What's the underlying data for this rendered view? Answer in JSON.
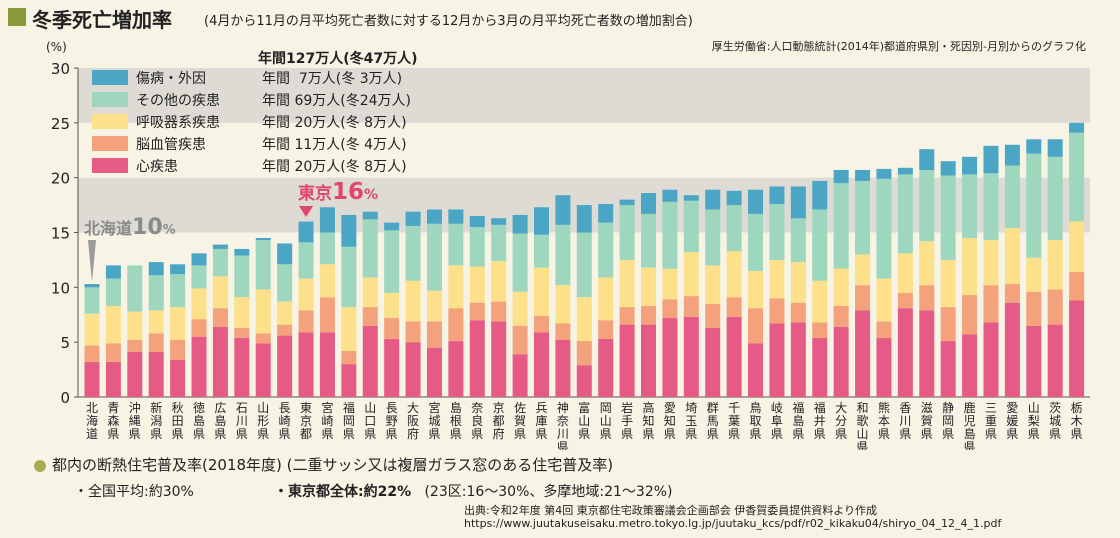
{
  "title": {
    "main": "冬季死亡増加率",
    "subtitle": "(4月から11月の月平均死亡者数に対する12月から3月の月平均死亡者数の増加割合)",
    "source_top": "厚生労働省:人口動態統計(2014年)都道府県別・死因別-月別からのグラフ化"
  },
  "colors": {
    "background": "#f7f3e5",
    "band": "#dddbd3",
    "injury": "#4aa6c4",
    "other": "#9ed6be",
    "respiratory": "#fde08a",
    "cerebro": "#f3a27b",
    "heart": "#e65b86",
    "accent_red": "#e0466f",
    "accent_gray": "#999999"
  },
  "legend": {
    "header": "年間127万人(冬47万人)",
    "items": [
      {
        "key": "injury",
        "label": "傷病・外因",
        "annual": "年間  7万人(冬 3万人)"
      },
      {
        "key": "other",
        "label": "その他の疾患",
        "annual": "年間 69万人(冬24万人)"
      },
      {
        "key": "respiratory",
        "label": "呼吸器系疾患",
        "annual": "年間 20万人(冬 8万人)"
      },
      {
        "key": "cerebro",
        "label": "脳血管疾患",
        "annual": "年間 11万人(冬 4万人)"
      },
      {
        "key": "heart",
        "label": "心疾患",
        "annual": "年間 20万人(冬 8万人)"
      }
    ]
  },
  "annotations": {
    "tokyo_name": "東京",
    "tokyo_value": "16",
    "tokyo_unit": "%",
    "hokkaido_name": "北海道",
    "hokkaido_value": "10",
    "hokkaido_unit": "%"
  },
  "chart_data": {
    "type": "bar",
    "stacked": true,
    "ylabel": "(%)",
    "ylim": [
      0,
      30
    ],
    "yticks": [
      0,
      5,
      10,
      15,
      20,
      25,
      30
    ],
    "categories": [
      "北海道",
      "青森県",
      "沖縄県",
      "新潟県",
      "秋田県",
      "徳島県",
      "広島県",
      "石川県",
      "山形県",
      "長崎県",
      "東京都",
      "宮崎県",
      "福岡県",
      "山口県",
      "長野県",
      "大阪府",
      "宮城県",
      "島根県",
      "奈良県",
      "京都府",
      "佐賀県",
      "兵庫県",
      "神奈川県",
      "富山県",
      "岡山県",
      "岩手県",
      "高知県",
      "愛知県",
      "埼玉県",
      "群馬県",
      "千葉県",
      "鳥取県",
      "岐阜県",
      "福島県",
      "福井県",
      "大分県",
      "和歌山県",
      "熊本県",
      "香川県",
      "滋賀県",
      "静岡県",
      "鹿児島県",
      "三重県",
      "愛媛県",
      "山梨県",
      "茨城県",
      "栃木県"
    ],
    "series": [
      {
        "name": "心疾患",
        "key": "heart",
        "values": [
          3.2,
          3.2,
          4.1,
          4.1,
          3.4,
          5.5,
          6.4,
          5.4,
          4.9,
          5.6,
          5.9,
          5.9,
          3.0,
          6.5,
          5.3,
          5.0,
          4.5,
          5.1,
          7.0,
          6.9,
          3.9,
          5.9,
          5.2,
          2.9,
          5.3,
          6.6,
          6.6,
          7.2,
          7.3,
          6.3,
          7.3,
          4.9,
          6.7,
          6.8,
          5.4,
          6.4,
          7.9,
          5.4,
          8.1,
          7.9,
          5.1,
          5.7,
          6.8,
          8.6,
          6.5,
          6.6,
          8.8
        ]
      },
      {
        "name": "脳血管疾患",
        "key": "cerebro",
        "values": [
          1.5,
          1.7,
          1.1,
          1.7,
          1.8,
          1.6,
          1.7,
          0.9,
          0.9,
          1.0,
          2.0,
          3.2,
          1.2,
          1.7,
          1.9,
          1.9,
          2.4,
          3.0,
          1.6,
          1.8,
          2.6,
          1.5,
          1.5,
          2.2,
          1.7,
          1.6,
          1.7,
          1.7,
          1.9,
          2.2,
          1.8,
          3.2,
          2.3,
          1.8,
          1.4,
          1.9,
          2.3,
          1.5,
          1.4,
          2.3,
          3.1,
          3.6,
          3.4,
          1.7,
          3.1,
          3.2,
          2.6
        ]
      },
      {
        "name": "呼吸器系疾患",
        "key": "respiratory",
        "values": [
          2.9,
          3.4,
          2.6,
          2.1,
          3.0,
          2.8,
          2.9,
          2.8,
          4.0,
          2.1,
          2.9,
          3.0,
          4.0,
          2.7,
          2.3,
          3.7,
          2.8,
          3.9,
          3.3,
          3.7,
          3.1,
          4.4,
          3.5,
          4.0,
          3.9,
          4.3,
          3.5,
          2.8,
          4.0,
          3.5,
          4.2,
          3.4,
          3.5,
          3.7,
          3.8,
          3.4,
          2.8,
          3.9,
          3.6,
          4.0,
          4.3,
          5.2,
          4.1,
          5.1,
          3.1,
          4.5,
          4.6
        ]
      },
      {
        "name": "その他の疾患",
        "key": "other",
        "values": [
          2.4,
          2.5,
          4.2,
          3.2,
          3.0,
          2.1,
          2.5,
          3.8,
          4.5,
          3.4,
          3.3,
          2.9,
          5.5,
          5.3,
          5.7,
          5.0,
          6.1,
          3.8,
          3.6,
          3.3,
          5.3,
          3.0,
          5.5,
          5.9,
          5.0,
          5.0,
          4.9,
          6.1,
          4.7,
          5.1,
          4.2,
          5.2,
          5.1,
          4.0,
          6.5,
          7.8,
          6.7,
          9.1,
          7.2,
          6.5,
          7.7,
          5.8,
          6.1,
          5.7,
          9.5,
          7.6,
          8.1
        ]
      },
      {
        "name": "傷病・外因",
        "key": "injury",
        "values": [
          0.3,
          1.2,
          0.0,
          1.2,
          0.9,
          1.1,
          0.4,
          0.6,
          0.2,
          1.9,
          1.9,
          2.3,
          2.9,
          0.7,
          0.7,
          1.3,
          1.3,
          1.3,
          1.0,
          0.6,
          1.7,
          2.5,
          2.7,
          2.5,
          1.7,
          0.5,
          1.9,
          1.1,
          0.5,
          1.8,
          1.3,
          2.2,
          1.6,
          2.9,
          2.6,
          1.2,
          1.0,
          0.9,
          0.6,
          1.9,
          1.3,
          1.6,
          2.5,
          1.9,
          1.3,
          1.6,
          0.9
        ]
      }
    ]
  },
  "survey": {
    "title": "都内の断熱住宅普及率(2018年度) (二重サッシ又は複層ガラス窓のある住宅普及率)",
    "national": "・全国平均:約30%",
    "tokyo_all": "・東京都全体:約22%",
    "tokyo_detail": "(23区:16〜30%、多摩地域:21〜32%)"
  },
  "source": {
    "line1": "出典:令和2年度 第4回 東京都住宅政策審議会企画部会  伊香賀委員提供資料より作成",
    "url": "https://www.juutakuseisaku.metro.tokyo.lg.jp/juutaku_kcs/pdf/r02_kikaku04/shiryo_04_12_4_1.pdf"
  }
}
